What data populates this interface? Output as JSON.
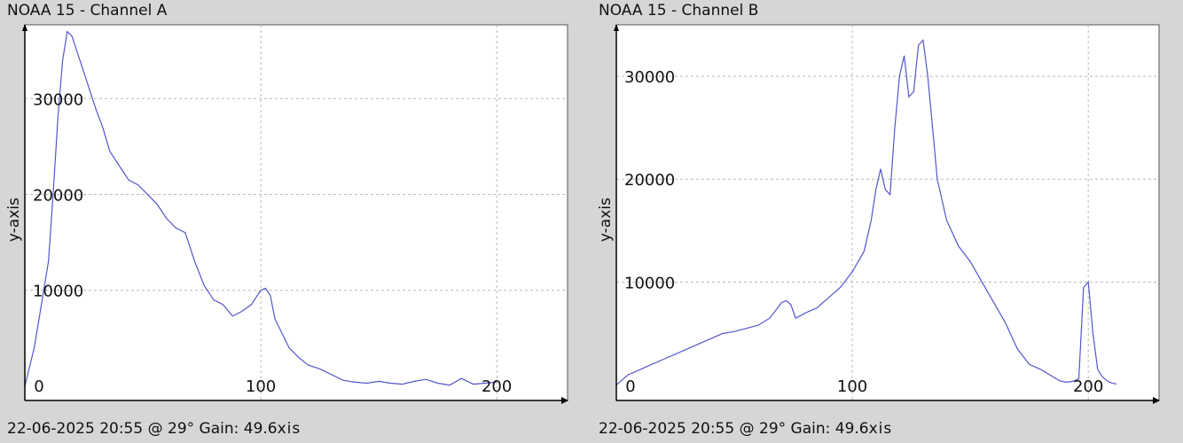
{
  "chart_data": [
    {
      "type": "line",
      "title": "NOAA 15 - Channel A",
      "xlabel": "",
      "ylabel": "y-axis",
      "footer": "22-06-2025 20:55 @ 29° Gain: 49.6",
      "footer_axis_fragment": "xis",
      "xlim": [
        0,
        230
      ],
      "ylim": [
        -1500,
        37700
      ],
      "xticks": [
        0,
        100,
        200
      ],
      "yticks": [
        10000,
        20000,
        30000
      ],
      "grid": true,
      "color": "#5555cc",
      "series": [
        {
          "x": [
            0,
            2,
            4,
            6,
            8,
            10,
            12,
            14,
            16,
            18,
            20,
            22,
            24,
            26,
            28,
            30,
            33,
            36,
            40,
            44,
            48,
            52,
            56,
            60,
            64,
            68,
            72,
            76,
            80,
            84,
            88,
            92,
            96,
            100,
            102,
            104,
            106,
            108,
            112,
            116,
            120,
            125,
            130,
            135,
            140,
            145,
            150,
            155,
            160,
            165,
            170,
            175,
            180,
            185,
            190,
            195,
            200
          ],
          "y": [
            0,
            2000,
            4000,
            7000,
            10000,
            13000,
            20000,
            28000,
            34000,
            37000,
            36500,
            35000,
            33500,
            32000,
            30500,
            29000,
            27000,
            24500,
            23000,
            21500,
            21000,
            20000,
            19000,
            17500,
            16500,
            16000,
            13000,
            10500,
            9000,
            8500,
            7300,
            7800,
            8500,
            10000,
            10200,
            9500,
            7000,
            6000,
            4000,
            3000,
            2200,
            1800,
            1200,
            600,
            400,
            300,
            500,
            300,
            200,
            500,
            700,
            300,
            100,
            800,
            200,
            300,
            400
          ]
        }
      ]
    },
    {
      "type": "line",
      "title": "NOAA 15 - Channel B",
      "xlabel": "",
      "ylabel": "y-axis",
      "footer": "22-06-2025 20:55 @ 29° Gain: 49.6",
      "footer_axis_fragment": "xis",
      "xlim": [
        0,
        230
      ],
      "ylim": [
        -1500,
        35000
      ],
      "xticks": [
        0,
        100,
        200
      ],
      "yticks": [
        10000,
        20000,
        30000
      ],
      "grid": true,
      "color": "#5555cc",
      "series": [
        {
          "x": [
            0,
            5,
            10,
            15,
            20,
            25,
            30,
            35,
            40,
            45,
            50,
            55,
            60,
            65,
            70,
            72,
            74,
            76,
            80,
            85,
            90,
            95,
            100,
            105,
            108,
            110,
            112,
            114,
            116,
            118,
            120,
            122,
            124,
            126,
            128,
            130,
            132,
            134,
            136,
            138,
            140,
            145,
            150,
            155,
            160,
            165,
            170,
            175,
            180,
            185,
            188,
            190,
            192,
            194,
            196,
            198,
            200,
            202,
            204,
            206,
            208,
            210,
            212
          ],
          "y": [
            0,
            1000,
            1500,
            2000,
            2500,
            3000,
            3500,
            4000,
            4500,
            5000,
            5200,
            5500,
            5800,
            6500,
            8000,
            8200,
            7800,
            6500,
            7000,
            7500,
            8500,
            9500,
            11000,
            13000,
            16000,
            19000,
            21000,
            19000,
            18500,
            25000,
            30000,
            32000,
            28000,
            28500,
            33000,
            33500,
            30000,
            25000,
            20000,
            18000,
            16000,
            13500,
            12000,
            10000,
            8000,
            6000,
            3500,
            2000,
            1500,
            800,
            400,
            300,
            300,
            400,
            600,
            9500,
            10000,
            5000,
            1500,
            800,
            400,
            200,
            100
          ]
        }
      ]
    }
  ]
}
